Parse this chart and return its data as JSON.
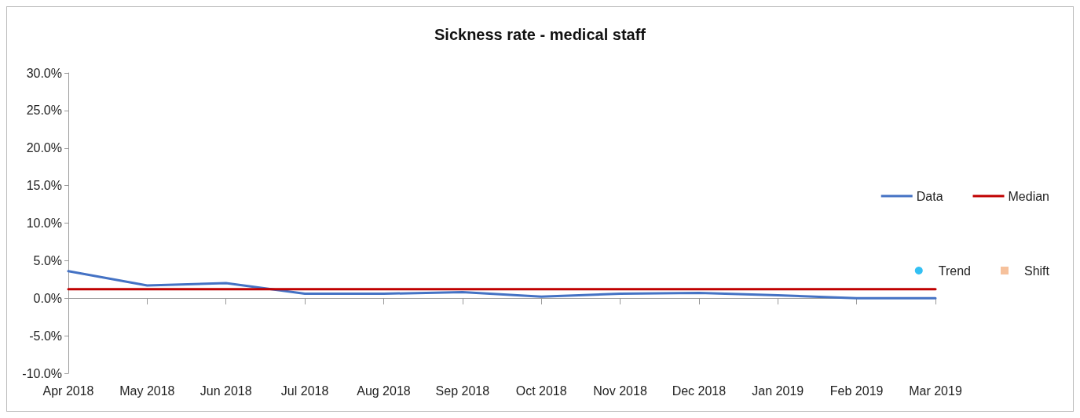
{
  "chart_data": {
    "type": "line",
    "title": "Sickness rate - medical staff",
    "categories": [
      "Apr 2018",
      "May 2018",
      "Jun 2018",
      "Jul 2018",
      "Aug 2018",
      "Sep 2018",
      "Oct 2018",
      "Nov 2018",
      "Dec 2018",
      "Jan 2019",
      "Feb 2019",
      "Mar 2019"
    ],
    "series": [
      {
        "name": "Data",
        "color": "#4472c4",
        "values": [
          3.6,
          1.7,
          2.0,
          0.6,
          0.6,
          0.8,
          0.2,
          0.6,
          0.7,
          0.4,
          0.0,
          0.0
        ]
      },
      {
        "name": "Median",
        "color": "#c00000",
        "values": [
          1.2,
          1.2,
          1.2,
          1.2,
          1.2,
          1.2,
          1.2,
          1.2,
          1.2,
          1.2,
          1.2,
          1.2
        ]
      },
      {
        "name": "Trend",
        "type": "scatter",
        "marker": "circle",
        "color": "#00b0f0",
        "values": [
          null,
          null,
          null,
          null,
          null,
          null,
          null,
          null,
          null,
          null,
          null,
          null
        ]
      },
      {
        "name": "Shift",
        "type": "scatter",
        "marker": "square",
        "color": "#f4b183",
        "values": [
          null,
          null,
          null,
          null,
          null,
          null,
          null,
          null,
          null,
          null,
          null,
          null
        ]
      }
    ],
    "ylim": [
      -10,
      30
    ],
    "yticks": [
      {
        "value": -10,
        "label": "-10.0%"
      },
      {
        "value": -5,
        "label": "-5.0%"
      },
      {
        "value": 0,
        "label": "0.0%"
      },
      {
        "value": 5,
        "label": "5.0%"
      },
      {
        "value": 10,
        "label": "10.0%"
      },
      {
        "value": 15,
        "label": "15.0%"
      },
      {
        "value": 20,
        "label": "20.0%"
      },
      {
        "value": 25,
        "label": "25.0%"
      },
      {
        "value": 30,
        "label": "30.0%"
      }
    ],
    "legend": "right",
    "marker": "none",
    "line_style": "solid"
  }
}
